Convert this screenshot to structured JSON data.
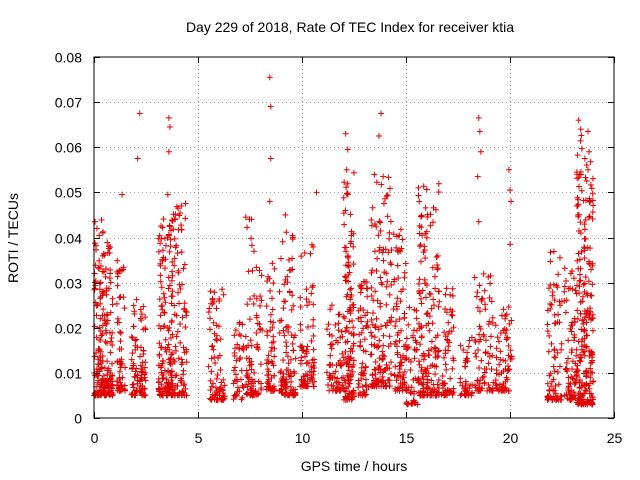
{
  "chart_data": {
    "type": "scatter",
    "title": "Day 229 of 2018, Rate Of TEC Index for receiver ktia",
    "xlabel": "GPS time / hours",
    "ylabel": "ROTI / TECUs",
    "xlim": [
      0,
      25
    ],
    "ylim": [
      0,
      0.08
    ],
    "xticks": [
      0,
      5,
      10,
      15,
      20,
      25
    ],
    "xtick_labels": [
      "0",
      "5",
      "10",
      "15",
      "20",
      "25"
    ],
    "yticks": [
      0,
      0.01,
      0.02,
      0.03,
      0.04,
      0.05,
      0.06,
      0.07,
      0.08
    ],
    "ytick_labels": [
      "0",
      "0.01",
      "0.02",
      "0.03",
      "0.04",
      "0.05",
      "0.06",
      "0.07",
      "0.08"
    ],
    "grid": true,
    "marker": "+",
    "color": "#e00000",
    "clusters": [
      {
        "x": [
          0.0,
          0.5
        ],
        "y": [
          0.005,
          0.044
        ],
        "n": 120
      },
      {
        "x": [
          0.5,
          0.9
        ],
        "y": [
          0.005,
          0.039
        ],
        "n": 90
      },
      {
        "x": [
          1.1,
          1.5
        ],
        "y": [
          0.006,
          0.035
        ],
        "n": 60
      },
      {
        "x": [
          1.8,
          2.1
        ],
        "y": [
          0.005,
          0.027
        ],
        "n": 40
      },
      {
        "x": [
          2.2,
          2.5
        ],
        "y": [
          0.005,
          0.025
        ],
        "n": 50
      },
      {
        "x": [
          3.1,
          3.8
        ],
        "y": [
          0.005,
          0.045
        ],
        "n": 160
      },
      {
        "x": [
          3.8,
          4.5
        ],
        "y": [
          0.005,
          0.048
        ],
        "n": 90
      },
      {
        "x": [
          5.5,
          6.3
        ],
        "y": [
          0.004,
          0.029
        ],
        "n": 80
      },
      {
        "x": [
          6.7,
          7.2
        ],
        "y": [
          0.004,
          0.027
        ],
        "n": 40
      },
      {
        "x": [
          7.3,
          8.1
        ],
        "y": [
          0.005,
          0.045
        ],
        "n": 90
      },
      {
        "x": [
          8.3,
          8.7
        ],
        "y": [
          0.006,
          0.035
        ],
        "n": 60
      },
      {
        "x": [
          8.9,
          9.7
        ],
        "y": [
          0.005,
          0.043
        ],
        "n": 110
      },
      {
        "x": [
          9.9,
          10.6
        ],
        "y": [
          0.007,
          0.039
        ],
        "n": 80
      },
      {
        "x": [
          11.2,
          12.0
        ],
        "y": [
          0.006,
          0.025
        ],
        "n": 70
      },
      {
        "x": [
          12.0,
          12.5
        ],
        "y": [
          0.004,
          0.056
        ],
        "n": 130
      },
      {
        "x": [
          12.7,
          13.2
        ],
        "y": [
          0.005,
          0.031
        ],
        "n": 60
      },
      {
        "x": [
          13.3,
          14.3
        ],
        "y": [
          0.007,
          0.054
        ],
        "n": 150
      },
      {
        "x": [
          14.4,
          15.0
        ],
        "y": [
          0.006,
          0.042
        ],
        "n": 80
      },
      {
        "x": [
          15.0,
          15.6
        ],
        "y": [
          0.003,
          0.025
        ],
        "n": 50
      },
      {
        "x": [
          15.6,
          16.6
        ],
        "y": [
          0.005,
          0.052
        ],
        "n": 170
      },
      {
        "x": [
          16.7,
          17.3
        ],
        "y": [
          0.005,
          0.03
        ],
        "n": 60
      },
      {
        "x": [
          17.6,
          18.2
        ],
        "y": [
          0.005,
          0.018
        ],
        "n": 40
      },
      {
        "x": [
          18.3,
          19.2
        ],
        "y": [
          0.006,
          0.032
        ],
        "n": 80
      },
      {
        "x": [
          19.3,
          20.1
        ],
        "y": [
          0.006,
          0.025
        ],
        "n": 70
      },
      {
        "x": [
          21.8,
          22.5
        ],
        "y": [
          0.004,
          0.038
        ],
        "n": 80
      },
      {
        "x": [
          22.6,
          23.2
        ],
        "y": [
          0.004,
          0.034
        ],
        "n": 70
      },
      {
        "x": [
          23.2,
          24.0
        ],
        "y": [
          0.003,
          0.065
        ],
        "n": 230
      }
    ],
    "outliers": [
      {
        "x": 0.05,
        "y": 0.0435
      },
      {
        "x": 1.35,
        "y": 0.0495
      },
      {
        "x": 2.1,
        "y": 0.0575
      },
      {
        "x": 2.2,
        "y": 0.0675
      },
      {
        "x": 3.6,
        "y": 0.0665
      },
      {
        "x": 3.65,
        "y": 0.0645
      },
      {
        "x": 3.6,
        "y": 0.059
      },
      {
        "x": 3.55,
        "y": 0.0495
      },
      {
        "x": 4.2,
        "y": 0.047
      },
      {
        "x": 8.45,
        "y": 0.0755
      },
      {
        "x": 8.5,
        "y": 0.069
      },
      {
        "x": 8.5,
        "y": 0.0575
      },
      {
        "x": 8.45,
        "y": 0.048
      },
      {
        "x": 7.3,
        "y": 0.0445
      },
      {
        "x": 9.2,
        "y": 0.045
      },
      {
        "x": 10.7,
        "y": 0.05
      },
      {
        "x": 12.1,
        "y": 0.063
      },
      {
        "x": 12.2,
        "y": 0.0595
      },
      {
        "x": 12.15,
        "y": 0.055
      },
      {
        "x": 13.7,
        "y": 0.0625
      },
      {
        "x": 13.8,
        "y": 0.0675
      },
      {
        "x": 13.9,
        "y": 0.0535
      },
      {
        "x": 15.6,
        "y": 0.051
      },
      {
        "x": 18.5,
        "y": 0.0665
      },
      {
        "x": 18.55,
        "y": 0.0635
      },
      {
        "x": 18.6,
        "y": 0.059
      },
      {
        "x": 18.45,
        "y": 0.0535
      },
      {
        "x": 18.5,
        "y": 0.0435
      },
      {
        "x": 19.95,
        "y": 0.055
      },
      {
        "x": 20.0,
        "y": 0.0505
      },
      {
        "x": 20.05,
        "y": 0.048
      },
      {
        "x": 20.0,
        "y": 0.0385
      },
      {
        "x": 23.3,
        "y": 0.066
      },
      {
        "x": 23.4,
        "y": 0.064
      },
      {
        "x": 23.75,
        "y": 0.0635
      },
      {
        "x": 23.8,
        "y": 0.059
      },
      {
        "x": 23.6,
        "y": 0.0575
      },
      {
        "x": 23.75,
        "y": 0.055
      },
      {
        "x": 23.35,
        "y": 0.054
      }
    ]
  }
}
